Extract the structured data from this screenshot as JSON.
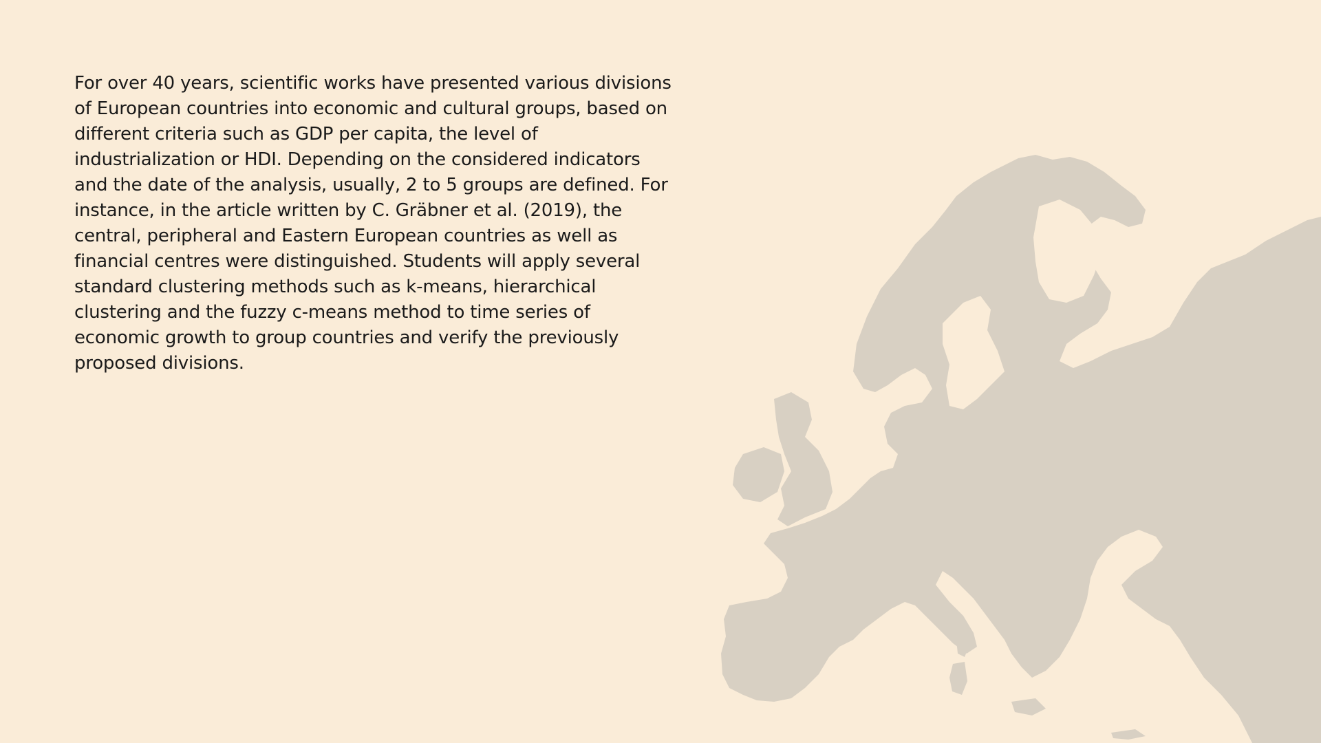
{
  "slide": {
    "paragraph": "For over 40 years, scientific works have presented various divisions of European countries into economic and cultural groups, based on different criteria such as GDP per capita, the level of industrialization or HDI. Depending on the considered indicators and the date of the analysis, usually, 2 to 5 groups are defined. For instance, in the article written by C. Gräbner et al. (2019), the central, peripheral and Eastern European countries as well as financial centres were distinguished. Students will apply several standard clustering methods such as k-means, hierarchical clustering and the fuzzy c-means method to time series of economic growth to group countries and verify the previously proposed divisions."
  },
  "colors": {
    "background": "#FAECD8",
    "map_fill": "#D8D0C3",
    "text": "#1a1a1a"
  },
  "icons": {
    "map": "europe-map-silhouette"
  }
}
